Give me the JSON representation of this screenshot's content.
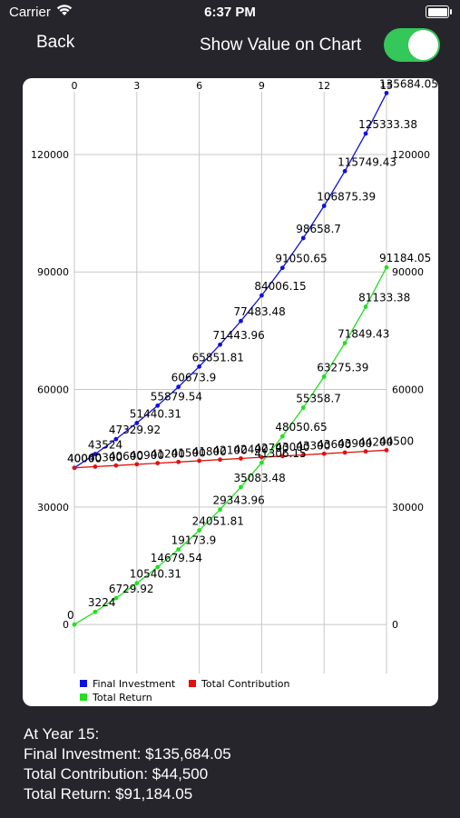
{
  "status_bar": {
    "carrier": "Carrier",
    "time": "6:37 PM"
  },
  "nav": {
    "back_label": "Back",
    "toggle_label": "Show Value on Chart",
    "toggle_on": true
  },
  "chart_data": {
    "type": "line",
    "x": [
      0,
      1,
      2,
      3,
      4,
      5,
      6,
      7,
      8,
      9,
      10,
      11,
      12,
      13,
      14,
      15
    ],
    "xlim": [
      0,
      15
    ],
    "ylim": [
      -12500,
      136000
    ],
    "x_ticks": [
      "0",
      "3",
      "6",
      "9",
      "12",
      "15"
    ],
    "y_ticks": [
      "0",
      "30000",
      "60000",
      "90000",
      "120000"
    ],
    "series": [
      {
        "name": "Final Investment",
        "color": "#1010e0",
        "values": [
          40000,
          43524,
          47329.92,
          51440.31,
          55879.54,
          60673.9,
          65851.81,
          71443.96,
          77483.48,
          84006.15,
          91050.65,
          98658.7,
          106875.39,
          115749.43,
          125333.38,
          135684.05
        ],
        "labels": [
          "40000",
          "43524",
          "47329.92",
          "51440.31",
          "55879.54",
          "60673.9",
          "65851.81",
          "71443.96",
          "77483.48",
          "84006.15",
          "91050.65",
          "98658.7",
          "106875.39",
          "115749.43",
          "125333.38",
          "135684.05"
        ]
      },
      {
        "name": "Total Contribution",
        "color": "#e01010",
        "values": [
          40000,
          40300,
          40600,
          40900,
          41200,
          41500,
          41800,
          42100,
          42400,
          42700,
          43000,
          43300,
          43600,
          43900,
          44200,
          44500
        ],
        "labels": [
          "40000",
          "40300",
          "40600",
          "40900",
          "41200",
          "41500",
          "41800",
          "42100",
          "42400",
          "42700",
          "43000",
          "43300",
          "43600",
          "43900",
          "44200",
          "44500"
        ]
      },
      {
        "name": "Total Return",
        "color": "#22e022",
        "values": [
          0,
          3224,
          6729.92,
          10540.31,
          14679.54,
          19173.9,
          24051.81,
          29343.96,
          35083.48,
          41306.15,
          48050.65,
          55358.7,
          63275.39,
          71849.43,
          81133.38,
          91184.05
        ],
        "labels": [
          "0",
          "3224",
          "6729.92",
          "10540.31",
          "14679.54",
          "19173.9",
          "24051.81",
          "29343.96",
          "35083.48",
          "41306.15",
          "48050.65",
          "55358.7",
          "63275.39",
          "71849.43",
          "81133.38",
          "91184.05"
        ]
      }
    ],
    "legend_position": "bottom-left",
    "grid": true
  },
  "summary": {
    "heading": "At Year 15:",
    "final_investment": "Final Investment: $135,684.05",
    "total_contribution": "Total Contribution: $44,500",
    "total_return": "Total Return: $91,184.05"
  }
}
